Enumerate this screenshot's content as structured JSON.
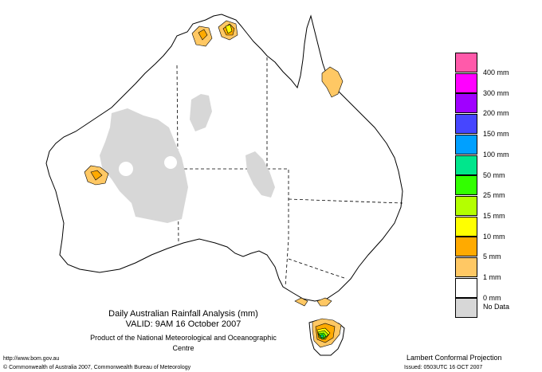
{
  "map": {
    "title": "Daily Australian Rainfall Analysis (mm)",
    "valid": "VALID: 9AM 16 October 2007",
    "product": "Product of the National Meteorological and Oceanographic Centre",
    "projection": "Lambert Conformal Projection",
    "url": "http://www.bom.gov.au",
    "copyright": "© Commonwealth of Australia 2007, Commonwealth Bureau of Meteorology",
    "issued": "Issued: 0503UTC 16 OCT 2007"
  },
  "legend": {
    "items": [
      {
        "label": "400 mm",
        "color": "#ff5aaa"
      },
      {
        "label": "300 mm",
        "color": "#ff00ff"
      },
      {
        "label": "200 mm",
        "color": "#a000ff"
      },
      {
        "label": "150 mm",
        "color": "#4646ff"
      },
      {
        "label": "100 mm",
        "color": "#00a0ff"
      },
      {
        "label": "50 mm",
        "color": "#00e68c"
      },
      {
        "label": "25 mm",
        "color": "#32ff00"
      },
      {
        "label": "15 mm",
        "color": "#b4ff00"
      },
      {
        "label": "10 mm",
        "color": "#ffff00"
      },
      {
        "label": "5 mm",
        "color": "#ffaa00"
      },
      {
        "label": "1 mm",
        "color": "#ffc864"
      },
      {
        "label": "0 mm",
        "color": "#ffffff"
      },
      {
        "label": "No Data",
        "color": "#d7d7d7"
      }
    ]
  }
}
